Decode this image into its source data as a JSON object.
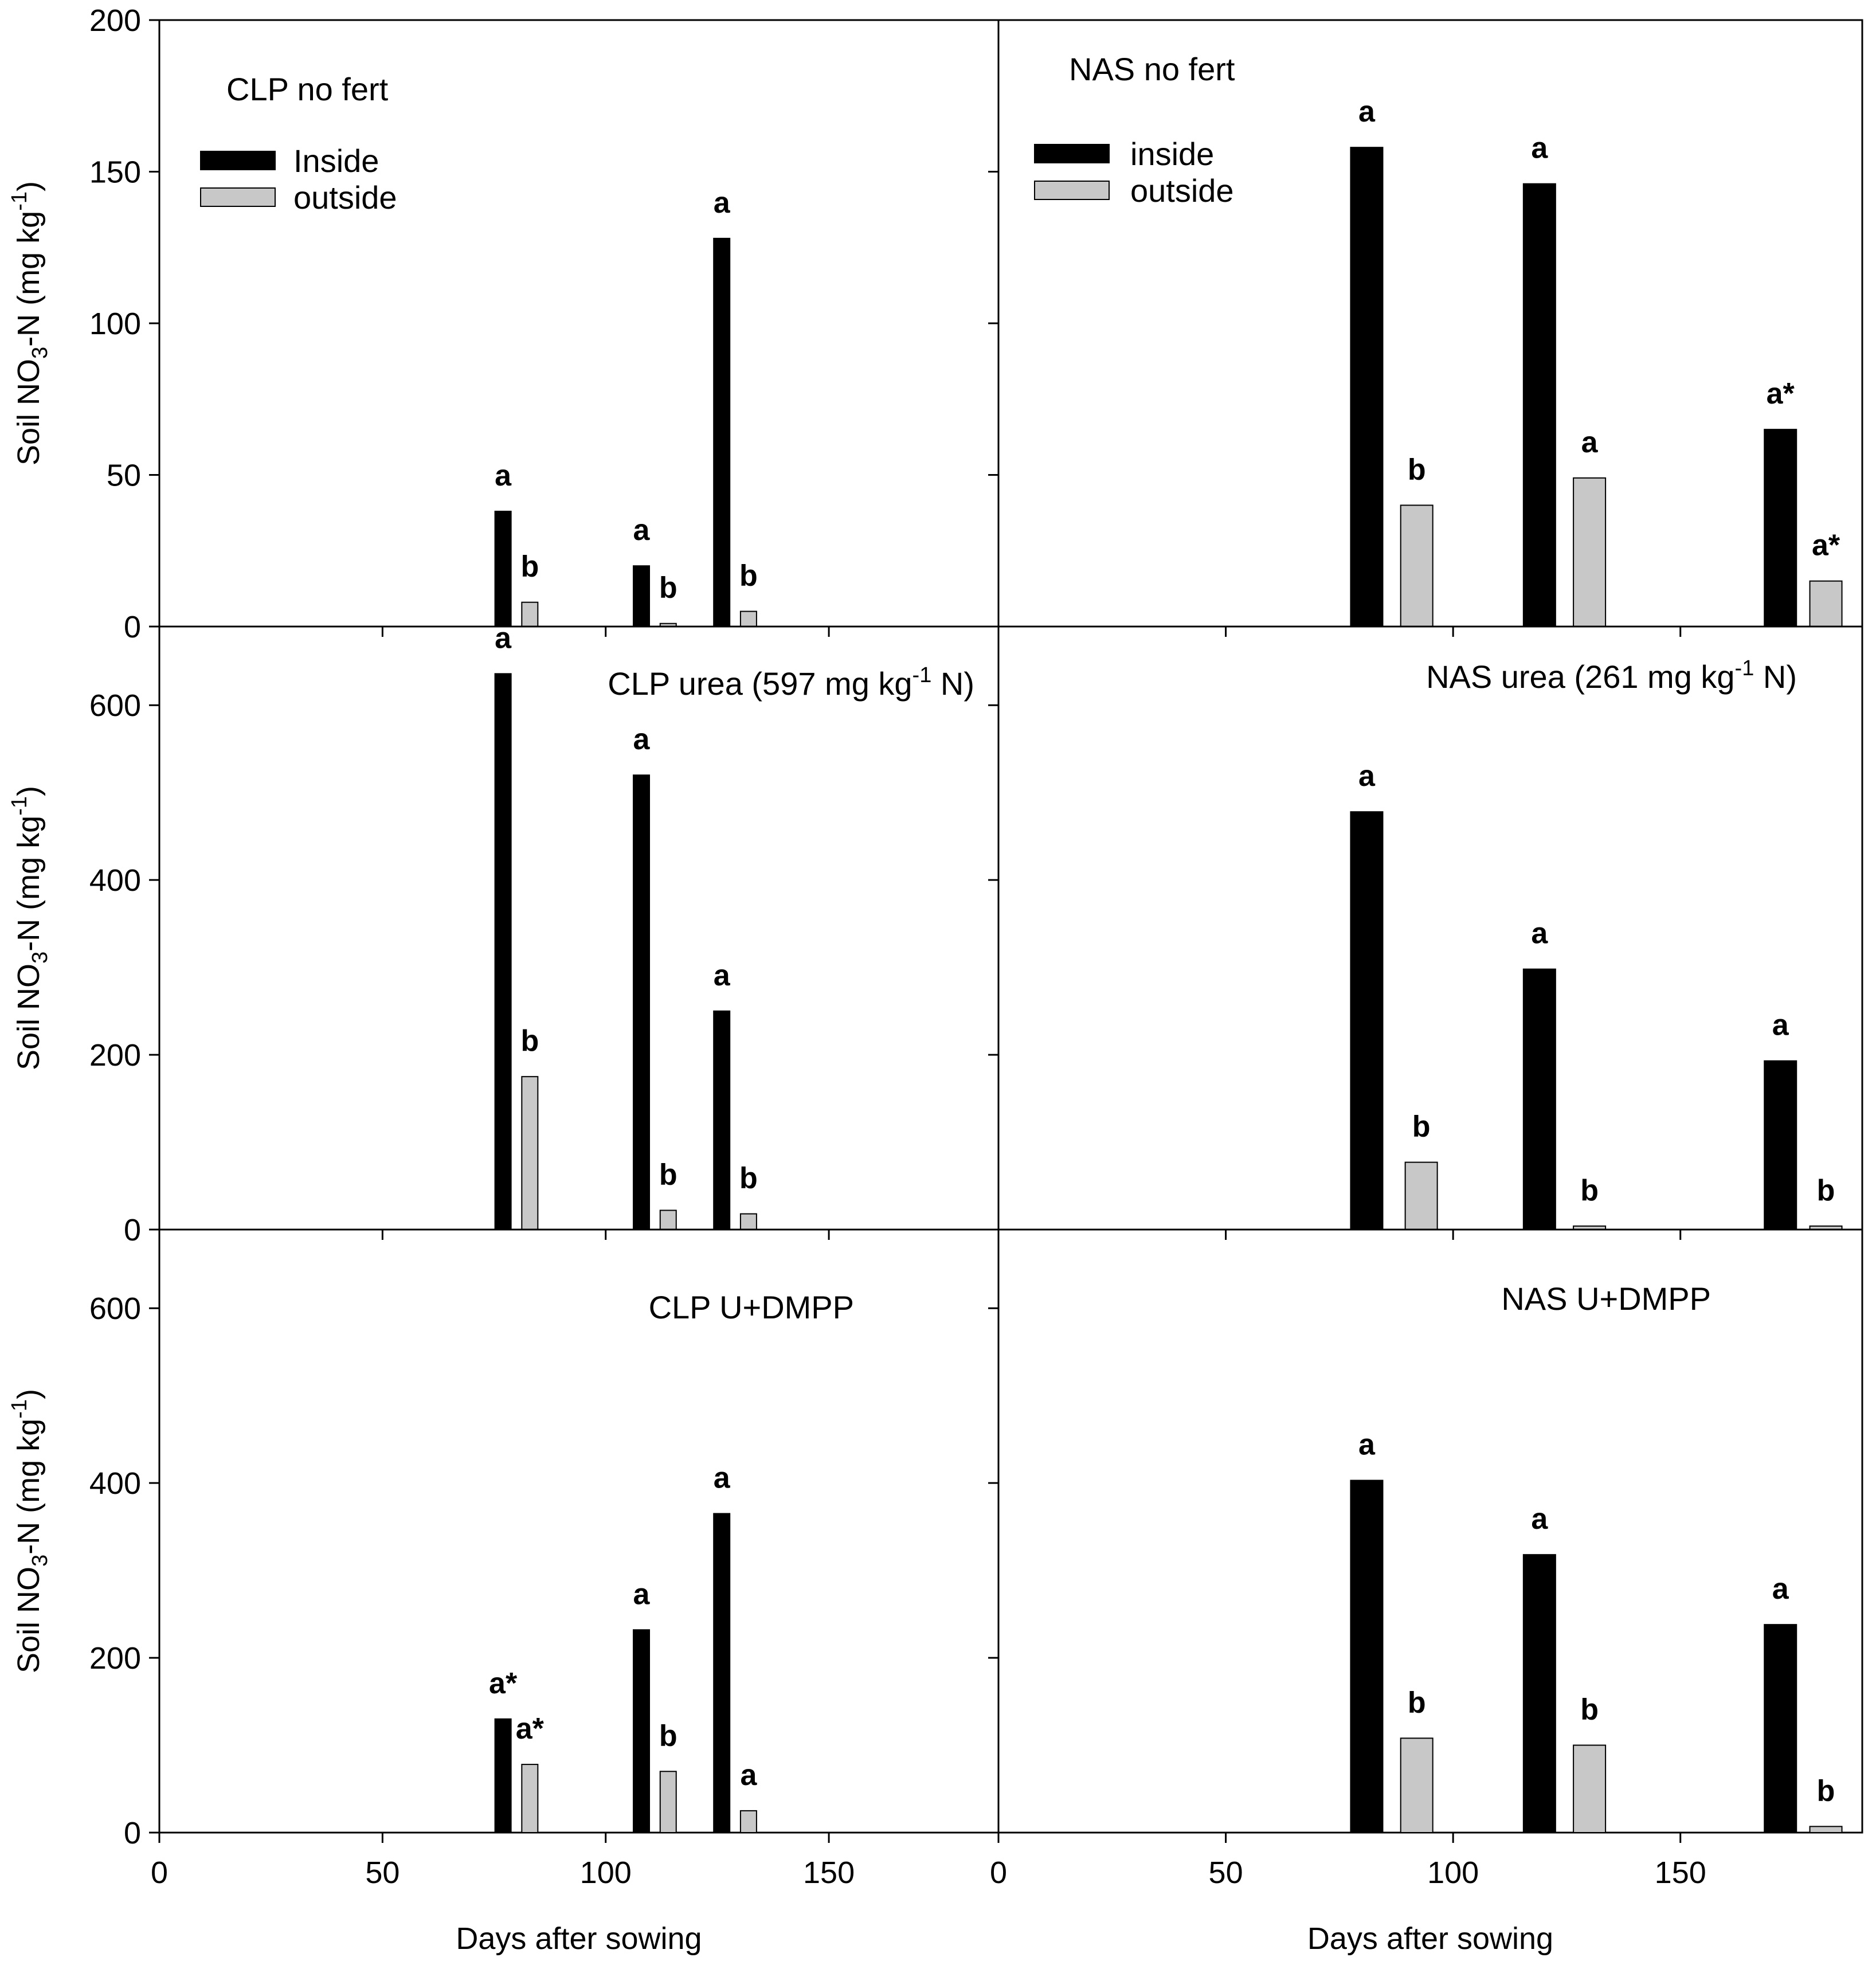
{
  "colors": {
    "inside": "#000000",
    "outside": "#c8c8c8",
    "axis": "#000000"
  },
  "chart_data": [
    {
      "type": "bar",
      "title": "CLP no fert",
      "ylabel_prefix": "Soil NO",
      "ylabel_sub": "3",
      "ylabel_mid": "-N (mg kg",
      "ylabel_sup": "-1",
      "ylabel_suffix": ")",
      "xlabel": "",
      "xlim": [
        0,
        188
      ],
      "ylim": [
        0,
        200
      ],
      "xticks": [
        "0",
        "50",
        "100",
        "150"
      ],
      "yticks": [
        "0",
        "50",
        "100",
        "150",
        "200"
      ],
      "legend": {
        "position": "top-left",
        "entries": [
          "Inside",
          "outside"
        ]
      },
      "series": [
        {
          "name": "Inside",
          "points": [
            {
              "x": 77,
              "y": 38,
              "label": "a"
            },
            {
              "x": 108,
              "y": 20,
              "label": "a"
            },
            {
              "x": 126,
              "y": 128,
              "label": "a"
            }
          ]
        },
        {
          "name": "outside",
          "points": [
            {
              "x": 83,
              "y": 8,
              "label": "b"
            },
            {
              "x": 114,
              "y": 1,
              "label": "b"
            },
            {
              "x": 132,
              "y": 5,
              "label": "b"
            }
          ]
        }
      ]
    },
    {
      "type": "bar",
      "title": "NAS no fert",
      "xlabel": "",
      "xlim": [
        0,
        190
      ],
      "ylim": [
        0,
        200
      ],
      "xticks": [
        "0",
        "50",
        "100",
        "150"
      ],
      "yticks": [
        "0",
        "50",
        "100",
        "150",
        "200"
      ],
      "legend": {
        "position": "top-left",
        "entries": [
          "inside",
          "outside"
        ]
      },
      "series": [
        {
          "name": "inside",
          "points": [
            {
              "x": 81,
              "y": 158,
              "label": "a"
            },
            {
              "x": 119,
              "y": 146,
              "label": "a"
            },
            {
              "x": 172,
              "y": 65,
              "label": "a*"
            }
          ]
        },
        {
          "name": "outside",
          "points": [
            {
              "x": 92,
              "y": 40,
              "label": "b"
            },
            {
              "x": 130,
              "y": 49,
              "label": "a"
            },
            {
              "x": 182,
              "y": 15,
              "label": "a*"
            }
          ]
        }
      ]
    },
    {
      "type": "bar",
      "title_pre": "CLP urea (597 mg kg",
      "title_sup": "-1",
      "title_post": " N)",
      "ylabel_prefix": "Soil NO",
      "ylabel_sub": "3",
      "ylabel_mid": "-N (mg kg",
      "ylabel_sup": "-1",
      "ylabel_suffix": ")",
      "xlabel": "",
      "xlim": [
        0,
        188
      ],
      "ylim": [
        0,
        690
      ],
      "xticks": [
        "0",
        "50",
        "100",
        "150"
      ],
      "yticks": [
        "0",
        "200",
        "400",
        "600"
      ],
      "series": [
        {
          "name": "Inside",
          "points": [
            {
              "x": 77,
              "y": 636,
              "label": "a"
            },
            {
              "x": 108,
              "y": 520,
              "label": "a"
            },
            {
              "x": 126,
              "y": 250,
              "label": "a"
            }
          ]
        },
        {
          "name": "outside",
          "points": [
            {
              "x": 83,
              "y": 175,
              "label": "b"
            },
            {
              "x": 114,
              "y": 22,
              "label": "b"
            },
            {
              "x": 132,
              "y": 18,
              "label": "b"
            }
          ]
        }
      ]
    },
    {
      "type": "bar",
      "title_pre": "NAS urea (261 mg kg",
      "title_sup": "-1",
      "title_post": " N)",
      "xlabel": "",
      "xlim": [
        0,
        190
      ],
      "ylim": [
        0,
        690
      ],
      "xticks": [
        "0",
        "50",
        "100",
        "150"
      ],
      "yticks": [
        "0",
        "200",
        "400",
        "600"
      ],
      "series": [
        {
          "name": "inside",
          "points": [
            {
              "x": 81,
              "y": 478,
              "label": "a"
            },
            {
              "x": 119,
              "y": 298,
              "label": "a"
            },
            {
              "x": 172,
              "y": 193,
              "label": "a"
            }
          ]
        },
        {
          "name": "outside",
          "points": [
            {
              "x": 93,
              "y": 77,
              "label": "b"
            },
            {
              "x": 130,
              "y": 4,
              "label": "b"
            },
            {
              "x": 182,
              "y": 4,
              "label": "b"
            }
          ]
        }
      ]
    },
    {
      "type": "bar",
      "title": "CLP U+DMPP",
      "ylabel_prefix": "Soil NO",
      "ylabel_sub": "3",
      "ylabel_mid": "-N (mg kg",
      "ylabel_sup": "-1",
      "ylabel_suffix": ")",
      "xlabel": "Days after sowing",
      "xlim": [
        0,
        188
      ],
      "ylim": [
        0,
        690
      ],
      "xticks": [
        "0",
        "50",
        "100",
        "150"
      ],
      "yticks": [
        "0",
        "200",
        "400",
        "600"
      ],
      "series": [
        {
          "name": "Inside",
          "points": [
            {
              "x": 77,
              "y": 130,
              "label": "a*"
            },
            {
              "x": 108,
              "y": 232,
              "label": "a"
            },
            {
              "x": 126,
              "y": 365,
              "label": "a"
            }
          ]
        },
        {
          "name": "outside",
          "points": [
            {
              "x": 83,
              "y": 78,
              "label": "a*"
            },
            {
              "x": 114,
              "y": 70,
              "label": "b"
            },
            {
              "x": 132,
              "y": 25,
              "label": "a"
            }
          ]
        }
      ]
    },
    {
      "type": "bar",
      "title": "NAS U+DMPP",
      "xlabel": "Days after sowing",
      "xlim": [
        0,
        190
      ],
      "ylim": [
        0,
        690
      ],
      "xticks": [
        "0",
        "50",
        "100",
        "150"
      ],
      "yticks": [
        "0",
        "200",
        "400",
        "600"
      ],
      "series": [
        {
          "name": "inside",
          "points": [
            {
              "x": 81,
              "y": 403,
              "label": "a"
            },
            {
              "x": 119,
              "y": 318,
              "label": "a"
            },
            {
              "x": 172,
              "y": 238,
              "label": "a"
            }
          ]
        },
        {
          "name": "outside",
          "points": [
            {
              "x": 92,
              "y": 108,
              "label": "b"
            },
            {
              "x": 130,
              "y": 100,
              "label": "b"
            },
            {
              "x": 182,
              "y": 7,
              "label": "b"
            }
          ]
        }
      ]
    }
  ]
}
